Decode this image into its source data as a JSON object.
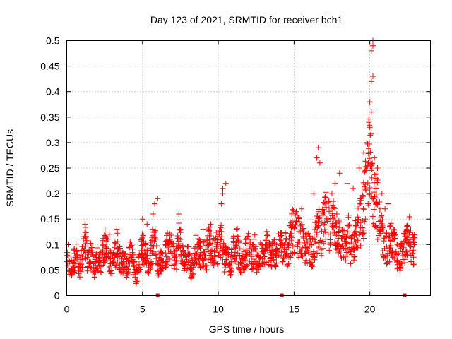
{
  "chart_data": {
    "type": "scatter",
    "title": "Day 123 of 2021, SRMTID for receiver bch1",
    "xlabel": "GPS time / hours",
    "ylabel": "SRMTID / TECUs",
    "xlim": [
      0,
      24
    ],
    "ylim": [
      0,
      0.5
    ],
    "xticks": [
      0,
      5,
      10,
      15,
      20
    ],
    "yticks": [
      0,
      0.05,
      0.1,
      0.15,
      0.2,
      0.25,
      0.3,
      0.35,
      0.4,
      0.45,
      0.5
    ],
    "xtick_labels": [
      "0",
      "5",
      "10",
      "15",
      "20"
    ],
    "ytick_labels": [
      "0",
      "0.05",
      "0.1",
      "0.15",
      "0.2",
      "0.25",
      "0.3",
      "0.35",
      "0.4",
      "0.45",
      "0.5"
    ],
    "grid": true,
    "marker": "+",
    "color": "#ff0000",
    "baseline_markers": [
      6.0,
      14.2,
      22.3
    ],
    "series": [
      {
        "name": "SRMTID",
        "x": [
          0.0,
          0.2,
          0.4,
          0.6,
          0.8,
          1.0,
          1.2,
          1.4,
          1.6,
          1.8,
          2.0,
          2.2,
          2.4,
          2.6,
          2.8,
          3.0,
          3.2,
          3.4,
          3.6,
          3.8,
          4.0,
          4.2,
          4.4,
          4.6,
          4.8,
          5.0,
          5.2,
          5.4,
          5.6,
          5.8,
          6.0,
          6.2,
          6.4,
          6.6,
          6.8,
          7.0,
          7.2,
          7.4,
          7.6,
          7.8,
          8.0,
          8.2,
          8.4,
          8.6,
          8.8,
          9.0,
          9.2,
          9.4,
          9.6,
          9.8,
          10.0,
          10.2,
          10.4,
          10.6,
          10.8,
          11.0,
          11.2,
          11.4,
          11.6,
          11.8,
          12.0,
          12.2,
          12.4,
          12.6,
          12.8,
          13.0,
          13.2,
          13.4,
          13.6,
          13.8,
          14.0,
          14.2,
          14.4,
          14.6,
          14.8,
          15.0,
          15.2,
          15.4,
          15.6,
          15.8,
          16.0,
          16.2,
          16.4,
          16.6,
          16.8,
          17.0,
          17.2,
          17.4,
          17.6,
          17.8,
          18.0,
          18.2,
          18.4,
          18.6,
          18.8,
          19.0,
          19.2,
          19.4,
          19.6,
          19.8,
          20.0,
          20.2,
          20.4,
          20.6,
          20.8,
          21.0,
          21.2,
          21.4,
          21.6,
          21.8,
          22.0,
          22.2,
          22.4,
          22.6,
          22.8
        ],
        "y": [
          0.07,
          0.05,
          0.06,
          0.08,
          0.05,
          0.07,
          0.11,
          0.06,
          0.08,
          0.05,
          0.07,
          0.06,
          0.09,
          0.1,
          0.07,
          0.06,
          0.08,
          0.1,
          0.06,
          0.07,
          0.05,
          0.09,
          0.06,
          0.04,
          0.07,
          0.1,
          0.08,
          0.06,
          0.09,
          0.13,
          0.05,
          0.07,
          0.06,
          0.09,
          0.1,
          0.08,
          0.07,
          0.11,
          0.09,
          0.06,
          0.08,
          0.05,
          0.07,
          0.1,
          0.08,
          0.09,
          0.07,
          0.11,
          0.08,
          0.1,
          0.09,
          0.12,
          0.07,
          0.08,
          0.06,
          0.09,
          0.11,
          0.07,
          0.06,
          0.08,
          0.1,
          0.07,
          0.09,
          0.06,
          0.08,
          0.07,
          0.1,
          0.08,
          0.09,
          0.07,
          0.11,
          0.09,
          0.1,
          0.08,
          0.12,
          0.13,
          0.12,
          0.11,
          0.1,
          0.09,
          0.1,
          0.08,
          0.11,
          0.13,
          0.12,
          0.14,
          0.16,
          0.12,
          0.15,
          0.13,
          0.11,
          0.1,
          0.09,
          0.12,
          0.08,
          0.11,
          0.13,
          0.15,
          0.17,
          0.22,
          0.28,
          0.2,
          0.21,
          0.14,
          0.12,
          0.1,
          0.09,
          0.11,
          0.1,
          0.08,
          0.07,
          0.09,
          0.1,
          0.12,
          0.09
        ],
        "extra_points": [
          [
            0.1,
            0.1
          ],
          [
            1.2,
            0.14
          ],
          [
            2.8,
            0.12
          ],
          [
            3.3,
            0.13
          ],
          [
            5.0,
            0.15
          ],
          [
            5.3,
            0.14
          ],
          [
            5.7,
            0.16
          ],
          [
            5.8,
            0.18
          ],
          [
            6.0,
            0.19
          ],
          [
            7.4,
            0.16
          ],
          [
            9.0,
            0.13
          ],
          [
            9.5,
            0.14
          ],
          [
            10.2,
            0.18
          ],
          [
            10.3,
            0.21
          ],
          [
            10.5,
            0.22
          ],
          [
            10.3,
            0.2
          ],
          [
            11.2,
            0.13
          ],
          [
            11.8,
            0.11
          ],
          [
            15.5,
            0.17
          ],
          [
            16.3,
            0.2
          ],
          [
            16.5,
            0.27
          ],
          [
            16.6,
            0.29
          ],
          [
            16.7,
            0.26
          ],
          [
            17.5,
            0.2
          ],
          [
            17.7,
            0.22
          ],
          [
            18.0,
            0.24
          ],
          [
            18.5,
            0.22
          ],
          [
            18.9,
            0.21
          ],
          [
            19.3,
            0.25
          ],
          [
            19.6,
            0.28
          ],
          [
            19.8,
            0.3
          ],
          [
            20.0,
            0.33
          ],
          [
            20.0,
            0.38
          ],
          [
            20.1,
            0.36
          ],
          [
            20.1,
            0.42
          ],
          [
            20.2,
            0.43
          ],
          [
            20.1,
            0.48
          ],
          [
            20.2,
            0.49
          ],
          [
            20.2,
            0.5
          ],
          [
            20.3,
            0.27
          ],
          [
            20.5,
            0.25
          ],
          [
            20.8,
            0.2
          ],
          [
            21.0,
            0.17
          ],
          [
            21.2,
            0.18
          ],
          [
            19.9,
            0.26
          ],
          [
            20.4,
            0.23
          ]
        ]
      }
    ]
  }
}
